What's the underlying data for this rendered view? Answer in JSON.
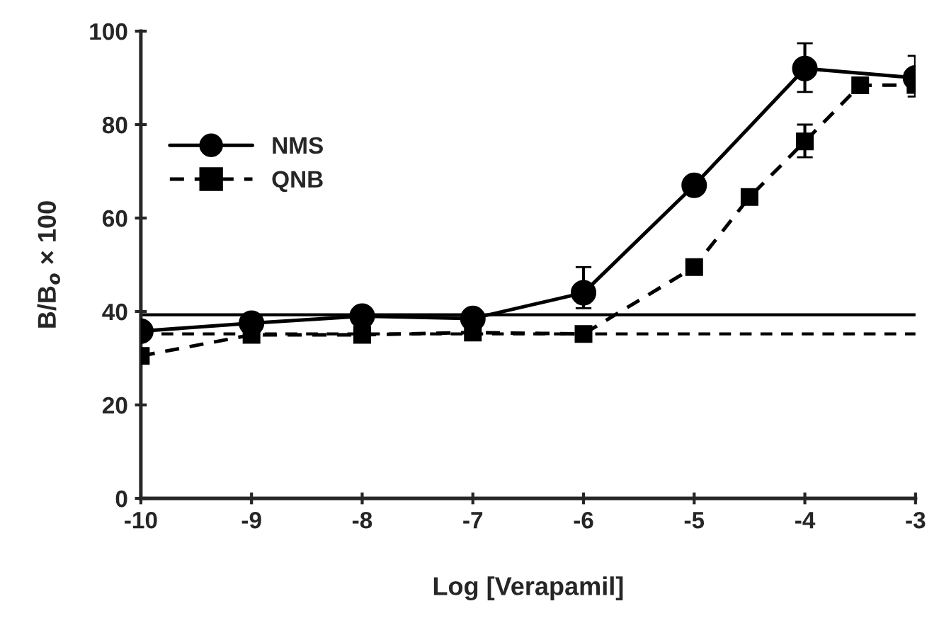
{
  "chart_data": {
    "type": "line",
    "xlabel": "Log [Verapamil]",
    "ylabel": "B/B$_{o}$ × 100",
    "xlim": [
      -10,
      -3
    ],
    "xticks": [
      -10,
      -9,
      -8,
      -7,
      -6,
      -5,
      -4,
      -3
    ],
    "ylim": [
      0,
      100
    ],
    "yticks": [
      0,
      20,
      40,
      60,
      80,
      100
    ],
    "grid": false,
    "legend": "top left",
    "series": [
      {
        "name": "NMS",
        "color": "#000000",
        "marker": "circle",
        "line_style": "solid",
        "x": [
          -10,
          -9,
          -8,
          -7,
          -6,
          -5,
          -4,
          -3
        ],
        "values": [
          35.8,
          37.5,
          39,
          38.5,
          44,
          67,
          92,
          90
        ],
        "errors": [
          null,
          null,
          null,
          null,
          [
            40.7,
            49.5
          ],
          null,
          [
            87,
            97.4
          ],
          [
            86,
            94.7
          ]
        ]
      },
      {
        "name": "QNB",
        "color": "#000000",
        "marker": "square",
        "line_style": "dashed",
        "x": [
          -10,
          -9,
          -8,
          -7,
          -6,
          -5,
          -4.5,
          -4,
          -3.5,
          -3
        ],
        "values": [
          30.5,
          35,
          35,
          35.5,
          35.2,
          49.5,
          64.5,
          76.4,
          88.4,
          88.5
        ],
        "errors": [
          null,
          null,
          null,
          null,
          null,
          null,
          null,
          [
            73,
            80
          ],
          null,
          null
        ]
      }
    ],
    "ref_lines": [
      {
        "axis": "y",
        "value": 39.3,
        "line_style": "solid",
        "color": "#000000"
      },
      {
        "axis": "y",
        "value": 35.2,
        "line_style": "dashed",
        "color": "#000000"
      }
    ]
  }
}
